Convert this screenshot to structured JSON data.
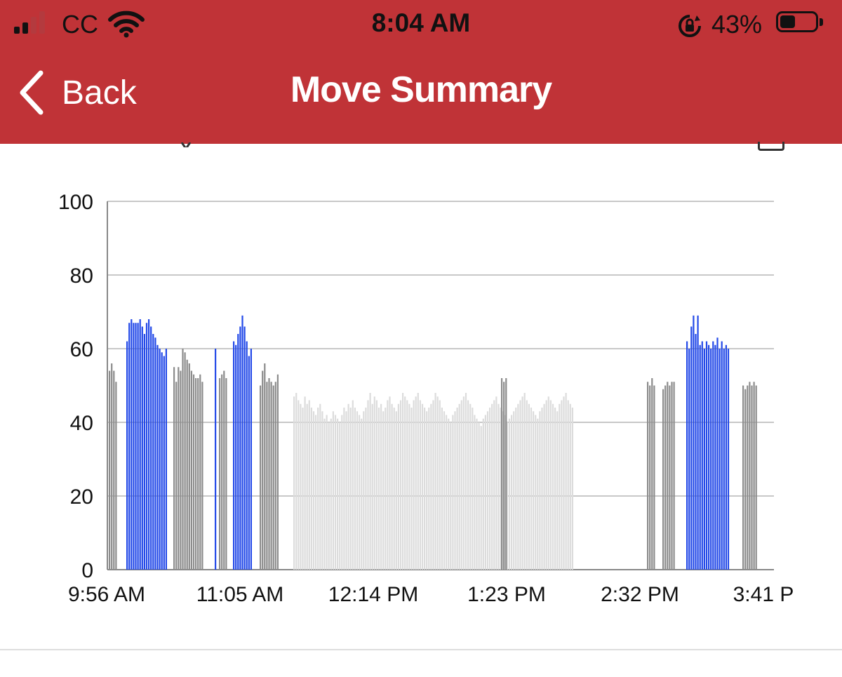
{
  "status_bar": {
    "carrier": "CC",
    "time": "8:04 AM",
    "battery_percent": "43%",
    "battery_level": 0.43,
    "icons": [
      "signal-icon",
      "wifi-icon",
      "rotation-lock-icon",
      "battery-icon"
    ]
  },
  "nav": {
    "back_label": "Back",
    "title": "Move Summary"
  },
  "colors": {
    "header": "#c03337",
    "active": "#2349e8",
    "moderate": "#8c8c8c",
    "light": "#dcdcdc"
  },
  "chart_data": {
    "type": "bar",
    "ylim": [
      0,
      100
    ],
    "yticks": [
      0,
      20,
      40,
      60,
      80,
      100
    ],
    "x_tick_labels": [
      "9:56 AM",
      "11:05 AM",
      "12:14 PM",
      "1:23 PM",
      "2:32 PM",
      "3:41 P"
    ],
    "grid": true,
    "bar_series": [
      {
        "color": "#2349e8",
        "values": [
          62,
          67,
          68,
          67,
          67,
          67,
          68,
          66,
          64,
          67,
          68,
          66,
          64,
          63,
          61,
          60,
          59,
          58,
          60
        ]
      },
      {
        "color": "#2349e8",
        "values": [
          60
        ]
      },
      {
        "color": "#2349e8",
        "values": [
          62,
          61,
          64,
          66,
          69,
          66,
          62,
          58,
          60
        ]
      },
      {
        "color": "#2349e8",
        "values": [
          62,
          60,
          66,
          69,
          64,
          69,
          61,
          62,
          60,
          62,
          61,
          60,
          62,
          61,
          63,
          60,
          62,
          60,
          61,
          60
        ]
      },
      {
        "color": "#8c8c8c",
        "values": [
          54,
          56,
          54,
          51,
          55,
          51,
          55,
          54,
          60,
          59,
          57,
          56,
          54,
          53,
          52,
          52,
          53,
          51,
          52,
          53,
          54,
          52,
          50,
          54,
          56,
          51,
          52,
          51,
          50,
          51,
          53,
          52,
          51,
          52,
          51,
          50,
          52,
          50,
          49,
          50,
          51,
          50,
          51,
          51,
          50,
          49,
          50,
          51,
          50,
          51,
          50
        ]
      },
      {
        "color": "#dcdcdc",
        "values": [
          47,
          48,
          46,
          45,
          44,
          47,
          45,
          46,
          44,
          43,
          42,
          44,
          45,
          43,
          41,
          42,
          40,
          41,
          43,
          42,
          41,
          40,
          42,
          44,
          43,
          45,
          44,
          46,
          44,
          43,
          42,
          41,
          43,
          44,
          46,
          48,
          45,
          47,
          46,
          44,
          45,
          43,
          44,
          46,
          47,
          45,
          44,
          43,
          45,
          46,
          48,
          47,
          46,
          45,
          44,
          46,
          47,
          48,
          46,
          45,
          44,
          43,
          44,
          45,
          46,
          48,
          47,
          46,
          44,
          43,
          42,
          41,
          40,
          42,
          43,
          44,
          45,
          46,
          47,
          48,
          46,
          45,
          44,
          42,
          41,
          40,
          39,
          41,
          42,
          43,
          44,
          45,
          46,
          47,
          45,
          44,
          43,
          42,
          40,
          41,
          42,
          43,
          44,
          45,
          46,
          47,
          48,
          46,
          45,
          44,
          43,
          42,
          41,
          43,
          44,
          45,
          46,
          47,
          46,
          45,
          44,
          43,
          45,
          46,
          47,
          48,
          46,
          45,
          44
        ]
      }
    ]
  }
}
